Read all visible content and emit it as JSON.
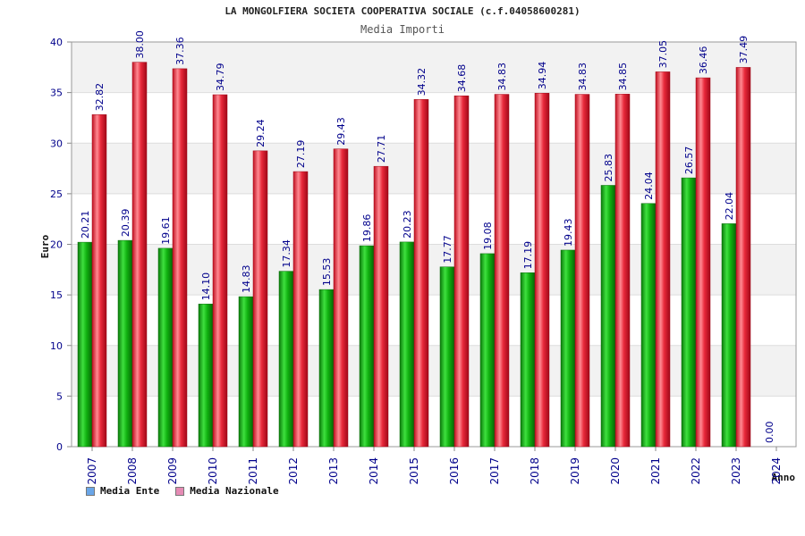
{
  "header": {
    "title": "LA MONGOLFIERA SOCIETA COOPERATIVA SOCIALE (c.f.04058600281)",
    "subtitle": "Media Importi"
  },
  "legend": {
    "items": [
      {
        "label": "Media Ente",
        "color": "#6aa6e8"
      },
      {
        "label": "Media Nazionale",
        "color": "#e58bb4"
      }
    ]
  },
  "colors": {
    "ente_bar": "#10b010",
    "nazionale_bar": "#e8283a",
    "label_text": "#00008b",
    "band": "#f2f2f2"
  },
  "chart_data": {
    "type": "bar",
    "title": "LA MONGOLFIERA SOCIETA COOPERATIVA SOCIALE (c.f.04058600281)",
    "subtitle": "Media Importi",
    "xlabel": "Anno",
    "ylabel": "Euro",
    "ylim": [
      0,
      40
    ],
    "yticks": [
      0,
      5,
      10,
      15,
      20,
      25,
      30,
      35,
      40
    ],
    "grid": true,
    "legend_position": "bottom-left",
    "categories": [
      "2007",
      "2008",
      "2009",
      "2010",
      "2011",
      "2012",
      "2013",
      "2014",
      "2015",
      "2016",
      "2017",
      "2018",
      "2019",
      "2020",
      "2021",
      "2022",
      "2023",
      "2024"
    ],
    "series": [
      {
        "name": "Media Ente",
        "values": [
          20.21,
          20.39,
          19.61,
          14.1,
          14.83,
          17.34,
          15.53,
          19.86,
          20.23,
          17.77,
          19.08,
          17.19,
          19.43,
          25.83,
          24.04,
          26.57,
          22.04,
          0.0
        ],
        "labels": [
          "20.21",
          "20.39",
          "19.61",
          "14.10",
          "14.83",
          "17.34",
          "15.53",
          "19.86",
          "20.23",
          "17.77",
          "19.08",
          "17.19",
          "19.43",
          "25.83",
          "24.04",
          "26.57",
          "22.04",
          "0.00"
        ]
      },
      {
        "name": "Media Nazionale",
        "values": [
          32.82,
          38.0,
          37.36,
          34.79,
          29.24,
          27.19,
          29.43,
          27.71,
          34.32,
          34.68,
          34.83,
          34.94,
          34.83,
          34.85,
          37.05,
          36.46,
          37.49,
          null
        ],
        "labels": [
          "32.82",
          "38.00",
          "37.36",
          "34.79",
          "29.24",
          "27.19",
          "29.43",
          "27.71",
          "34.32",
          "34.68",
          "34.83",
          "34.94",
          "34.83",
          "34.85",
          "37.05",
          "36.46",
          "37.49",
          ""
        ]
      }
    ]
  }
}
